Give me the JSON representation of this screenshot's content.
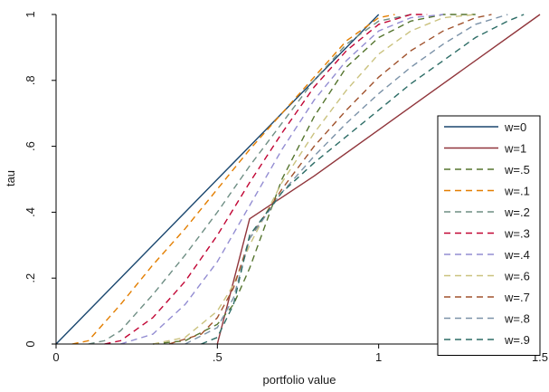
{
  "chart_data": {
    "type": "line",
    "xlabel": "portfolio value",
    "ylabel": "tau",
    "xlim": [
      0,
      1.5
    ],
    "ylim": [
      0,
      1
    ],
    "xticks": [
      {
        "value": 0,
        "label": "0"
      },
      {
        "value": 0.5,
        "label": ".5"
      },
      {
        "value": 1,
        "label": "1"
      },
      {
        "value": 1.5,
        "label": "1.5"
      }
    ],
    "yticks": [
      {
        "value": 0,
        "label": "0"
      },
      {
        "value": 0.2,
        "label": ".2"
      },
      {
        "value": 0.4,
        "label": ".4"
      },
      {
        "value": 0.6,
        "label": ".6"
      },
      {
        "value": 0.8,
        "label": ".8"
      },
      {
        "value": 1,
        "label": "1"
      }
    ],
    "grid": false,
    "legend_position": "right",
    "series": [
      {
        "name": "w=0",
        "color": "#1a476f",
        "dash": "solid",
        "x": [
          0,
          0.2,
          0.4,
          0.6,
          0.8,
          1.0
        ],
        "y": [
          0,
          0.2,
          0.4,
          0.6,
          0.8,
          1.0
        ]
      },
      {
        "name": "w=1",
        "color": "#90353b",
        "dash": "solid",
        "x": [
          0.5,
          0.6,
          0.8,
          1.0,
          1.2,
          1.5
        ],
        "y": [
          0,
          0.38,
          0.51,
          0.65,
          0.79,
          1.0
        ]
      },
      {
        "name": "w=.5",
        "color": "#55752f",
        "dash": "dashed",
        "x": [
          0.3,
          0.4,
          0.5,
          0.55,
          0.6,
          0.7,
          0.8,
          0.9,
          1.0,
          1.1,
          1.2,
          1.3
        ],
        "y": [
          0,
          0.01,
          0.06,
          0.12,
          0.23,
          0.5,
          0.69,
          0.84,
          0.93,
          0.98,
          1.0,
          1.0
        ]
      },
      {
        "name": "w=.1",
        "color": "#e37e00",
        "dash": "dashed",
        "x": [
          0.05,
          0.1,
          0.2,
          0.3,
          0.4,
          0.5,
          0.6,
          0.7,
          0.8,
          0.9,
          1.0,
          1.05
        ],
        "y": [
          0,
          0.01,
          0.12,
          0.24,
          0.35,
          0.47,
          0.59,
          0.7,
          0.81,
          0.92,
          0.99,
          1.0
        ]
      },
      {
        "name": "w=.2",
        "color": "#6e8e84",
        "dash": "dashed",
        "x": [
          0.1,
          0.15,
          0.2,
          0.3,
          0.4,
          0.5,
          0.6,
          0.7,
          0.8,
          0.9,
          1.0,
          1.1
        ],
        "y": [
          0,
          0.01,
          0.04,
          0.15,
          0.27,
          0.4,
          0.54,
          0.67,
          0.8,
          0.91,
          0.98,
          1.0
        ]
      },
      {
        "name": "w=.3",
        "color": "#c10534",
        "dash": "dashed",
        "x": [
          0.15,
          0.2,
          0.3,
          0.4,
          0.5,
          0.6,
          0.7,
          0.8,
          0.9,
          1.0,
          1.1,
          1.15
        ],
        "y": [
          0,
          0.01,
          0.08,
          0.19,
          0.33,
          0.49,
          0.64,
          0.78,
          0.89,
          0.97,
          1.0,
          1.0
        ]
      },
      {
        "name": "w=.4",
        "color": "#938dd2",
        "dash": "dashed",
        "x": [
          0.2,
          0.3,
          0.4,
          0.5,
          0.6,
          0.7,
          0.8,
          0.9,
          1.0,
          1.1,
          1.2
        ],
        "y": [
          0,
          0.03,
          0.12,
          0.25,
          0.42,
          0.59,
          0.74,
          0.86,
          0.95,
          0.99,
          1.0
        ]
      },
      {
        "name": "w=.6",
        "color": "#cac27e",
        "dash": "dashed",
        "x": [
          0.3,
          0.4,
          0.5,
          0.55,
          0.6,
          0.7,
          0.8,
          0.9,
          1.0,
          1.1,
          1.2,
          1.3
        ],
        "y": [
          0,
          0.02,
          0.1,
          0.18,
          0.3,
          0.49,
          0.64,
          0.77,
          0.88,
          0.95,
          0.99,
          1.0
        ]
      },
      {
        "name": "w=.7",
        "color": "#a0522d",
        "dash": "dashed",
        "x": [
          0.35,
          0.45,
          0.5,
          0.55,
          0.6,
          0.7,
          0.8,
          0.9,
          1.0,
          1.1,
          1.2,
          1.3,
          1.35
        ],
        "y": [
          0,
          0.03,
          0.08,
          0.17,
          0.32,
          0.47,
          0.6,
          0.71,
          0.81,
          0.89,
          0.95,
          0.99,
          1.0
        ]
      },
      {
        "name": "w=.8",
        "color": "#7b92a8",
        "dash": "dashed",
        "x": [
          0.4,
          0.5,
          0.55,
          0.6,
          0.7,
          0.8,
          0.9,
          1.0,
          1.1,
          1.2,
          1.3,
          1.4
        ],
        "y": [
          0,
          0.05,
          0.14,
          0.32,
          0.46,
          0.57,
          0.67,
          0.76,
          0.84,
          0.91,
          0.97,
          1.0
        ]
      },
      {
        "name": "w=.9",
        "color": "#2d6d66",
        "dash": "dashed",
        "x": [
          0.45,
          0.5,
          0.55,
          0.6,
          0.7,
          0.8,
          0.9,
          1.0,
          1.1,
          1.2,
          1.3,
          1.4,
          1.45
        ],
        "y": [
          0,
          0.02,
          0.12,
          0.33,
          0.46,
          0.55,
          0.63,
          0.71,
          0.79,
          0.86,
          0.93,
          0.98,
          1.0
        ]
      }
    ]
  }
}
